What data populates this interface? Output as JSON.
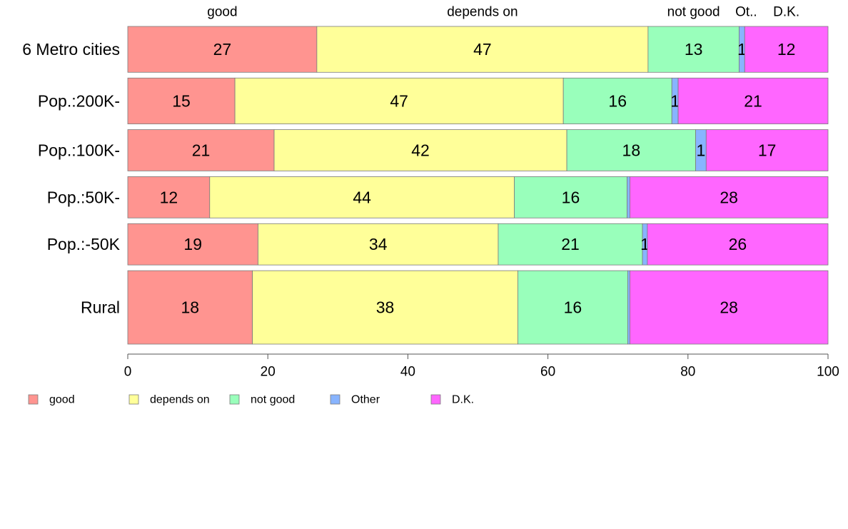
{
  "chart_data": {
    "type": "bar",
    "orientation": "horizontal",
    "stacked": true,
    "percent": true,
    "title": "",
    "xlabel": "",
    "ylabel": "",
    "xlim": [
      0,
      100
    ],
    "x_ticks": [
      0,
      20,
      40,
      60,
      80,
      100
    ],
    "grid": false,
    "legend_position": "bottom-left",
    "categories": [
      "6 Metro cities",
      "Pop.:200K-",
      "Pop.:100K-",
      "Pop.:50K-",
      "Pop.:-50K",
      "Rural"
    ],
    "series": [
      {
        "name": "good",
        "color": "#ff9490",
        "values": [
          27.0,
          15.3,
          20.9,
          11.7,
          18.6,
          17.8
        ]
      },
      {
        "name": "depends on",
        "color": "#ffff99",
        "values": [
          47.3,
          46.9,
          41.8,
          43.5,
          34.3,
          37.9
        ]
      },
      {
        "name": "not good",
        "color": "#99ffbb",
        "values": [
          13.0,
          15.5,
          18.4,
          16.1,
          20.6,
          15.7
        ]
      },
      {
        "name": "Other",
        "color": "#88b4ff",
        "values": [
          0.8,
          0.9,
          1.5,
          0.4,
          0.7,
          0.3
        ]
      },
      {
        "name": "D.K.",
        "color": "#ff66ff",
        "values": [
          11.9,
          21.4,
          17.4,
          28.3,
          25.8,
          28.3
        ]
      }
    ],
    "value_labels": [
      [
        "27",
        "47",
        "13",
        "1",
        "12"
      ],
      [
        "15",
        "47",
        "16",
        "1",
        "21"
      ],
      [
        "21",
        "42",
        "18",
        "1",
        "17"
      ],
      [
        "12",
        "44",
        "16",
        "",
        "28"
      ],
      [
        "19",
        "34",
        "21",
        "1",
        "26"
      ],
      [
        "18",
        "38",
        "16",
        "",
        "28"
      ]
    ],
    "column_labels": [
      "good",
      "depends on",
      "not good",
      "Ot..",
      "D.K."
    ],
    "row_weights": [
      1,
      1,
      0.9,
      0.9,
      0.9,
      1.6
    ]
  }
}
